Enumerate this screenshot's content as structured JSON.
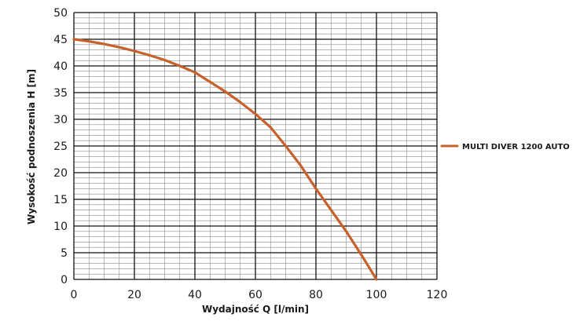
{
  "chart_data": {
    "type": "line",
    "xlabel": "Wydajność Q [l/min]",
    "ylabel": "Wysokość podnoszenia H [m]",
    "xlim": [
      0,
      120
    ],
    "ylim": [
      0,
      50
    ],
    "x_ticks": [
      "0",
      "20",
      "40",
      "60",
      "80",
      "100",
      "120"
    ],
    "y_ticks": [
      "0",
      "5",
      "10",
      "15",
      "20",
      "25",
      "30",
      "35",
      "40",
      "45",
      "50"
    ],
    "grid": true,
    "legend_position": "right",
    "series": [
      {
        "name": "MULTI DIVER 1200 AUTO",
        "color": "#c8602a",
        "points": [
          [
            0,
            45
          ],
          [
            5,
            44.6
          ],
          [
            10,
            44.1
          ],
          [
            15,
            43.5
          ],
          [
            20,
            42.8
          ],
          [
            25,
            42
          ],
          [
            30,
            41.1
          ],
          [
            35,
            40
          ],
          [
            40,
            38.8
          ],
          [
            45,
            37
          ],
          [
            50,
            35.2
          ],
          [
            55,
            33.2
          ],
          [
            60,
            31
          ],
          [
            65,
            28.5
          ],
          [
            70,
            25
          ],
          [
            75,
            21.3
          ],
          [
            80,
            17
          ],
          [
            85,
            13
          ],
          [
            90,
            9
          ],
          [
            95,
            4.6
          ],
          [
            100,
            0
          ]
        ]
      }
    ]
  }
}
